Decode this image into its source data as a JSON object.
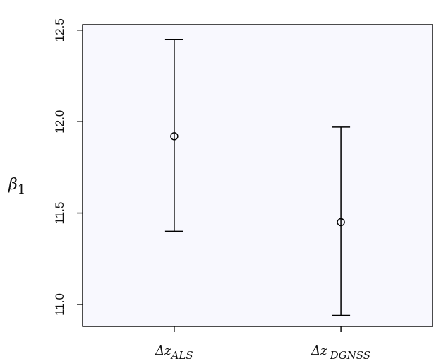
{
  "chart_data": {
    "type": "scatter",
    "title": "",
    "xlabel": "",
    "ylabel": {
      "base": "β",
      "sub": "1"
    },
    "categories": [
      {
        "base": "Δz",
        "sub": "ALS"
      },
      {
        "base": "Δz",
        "sub": "DGNSS"
      }
    ],
    "points": [
      {
        "y": 11.92,
        "lower": 11.4,
        "upper": 12.45
      },
      {
        "y": 11.45,
        "lower": 10.94,
        "upper": 11.97
      }
    ],
    "ylim": [
      10.88,
      12.53
    ],
    "yticks": [
      "11.0",
      "11.5",
      "12.0",
      "12.5"
    ],
    "grid": false,
    "legend": "none",
    "colors": {
      "marker": "#000000",
      "plot_background": "#f8f8fe"
    }
  }
}
